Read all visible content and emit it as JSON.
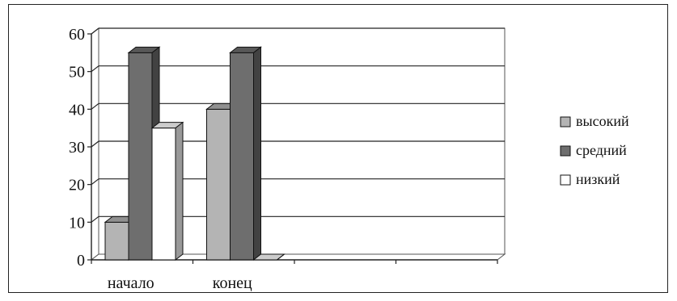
{
  "chart_data": {
    "type": "bar",
    "categories": [
      "начало",
      "конец",
      "",
      ""
    ],
    "series": [
      {
        "name": "высокий",
        "values": [
          10,
          40,
          null,
          null
        ]
      },
      {
        "name": "средний",
        "values": [
          55,
          55,
          null,
          null
        ]
      },
      {
        "name": "низкий",
        "values": [
          35,
          0,
          null,
          null
        ]
      }
    ],
    "title": "",
    "xlabel": "",
    "ylabel": "",
    "ylim": [
      0,
      60
    ],
    "yticks": [
      "0",
      "10",
      "20",
      "30",
      "40",
      "50",
      "60"
    ],
    "grid": true,
    "legend_position": "right",
    "style": "3d-clustered-bar",
    "colors": {
      "высокий": "#b4b4b4",
      "средний": "#6e6e6e",
      "низкий": "#ffffff"
    }
  }
}
